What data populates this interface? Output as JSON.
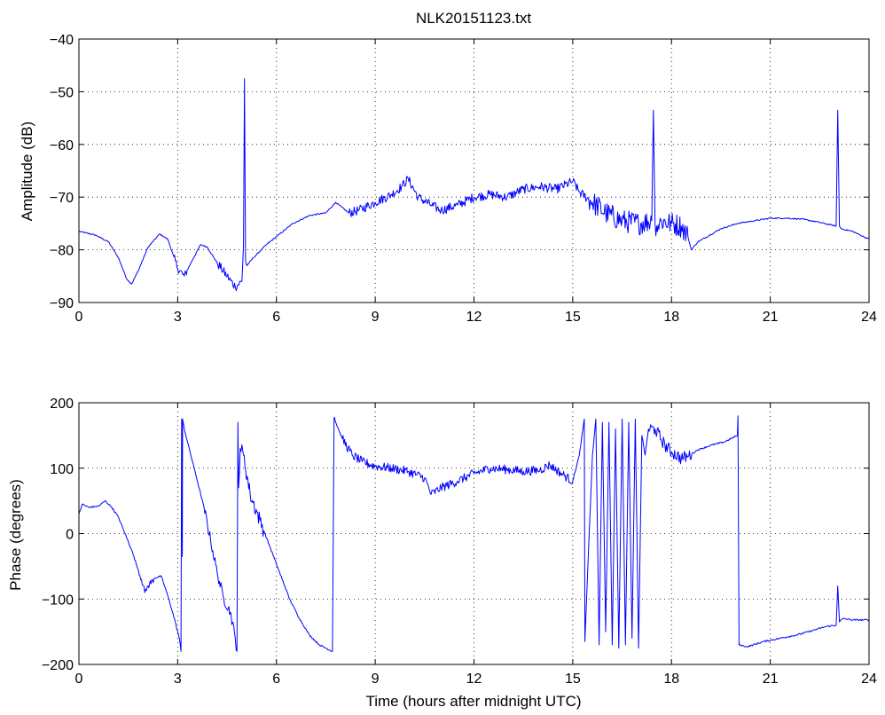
{
  "chart_data": [
    {
      "type": "line",
      "title": "NLK20151123.txt",
      "xlabel": "",
      "ylabel": "Amplitude (dB)",
      "xlim": [
        0,
        24
      ],
      "ylim": [
        -90,
        -40
      ],
      "xticks": [
        0,
        3,
        6,
        9,
        12,
        15,
        18,
        21,
        24
      ],
      "yticks": [
        -90,
        -80,
        -70,
        -60,
        -50,
        -40
      ],
      "grid": true,
      "line_color": "#0000ff",
      "series": [
        {
          "x": [
            0,
            0.5,
            0.9,
            1.2,
            1.45,
            1.6,
            1.8,
            2.1,
            2.45,
            2.7,
            3.0,
            3.2,
            3.4,
            3.7,
            3.9,
            4.2,
            4.5,
            4.75,
            4.95,
            5.0,
            5.03,
            5.06,
            5.1,
            5.3,
            5.7,
            6.0,
            6.5,
            7.0,
            7.5,
            7.8,
            8.2,
            8.5,
            9.0,
            9.5,
            9.8,
            10.0,
            10.3,
            10.7,
            11.0,
            11.5,
            12.0,
            12.5,
            13.0,
            13.5,
            14.0,
            14.5,
            15.0,
            15.2,
            15.6,
            16.0,
            16.5,
            17.0,
            17.4,
            17.45,
            17.5,
            17.55,
            17.7,
            18.0,
            18.3,
            18.5,
            18.6,
            18.8,
            19.5,
            20.0,
            20.5,
            21.0,
            21.5,
            22.0,
            22.5,
            23.0,
            23.05,
            23.1,
            23.15,
            23.5,
            24.0
          ],
          "y": [
            -76.5,
            -77.2,
            -78.5,
            -81.5,
            -85.5,
            -86.5,
            -84,
            -79.5,
            -77,
            -78,
            -83.5,
            -85,
            -82.5,
            -79,
            -79.5,
            -82.5,
            -85,
            -87,
            -86,
            -79,
            -47.5,
            -82,
            -83,
            -81.5,
            -79,
            -77.5,
            -75,
            -73.5,
            -73,
            -71,
            -73,
            -72.5,
            -71,
            -69.5,
            -68,
            -66.5,
            -70,
            -71.5,
            -72.5,
            -71.5,
            -70,
            -69.5,
            -70,
            -68.5,
            -68,
            -68.5,
            -67,
            -69,
            -71,
            -73,
            -74.5,
            -75,
            -74.5,
            -53.5,
            -75,
            -75.5,
            -74.5,
            -75,
            -75.5,
            -77.5,
            -80,
            -78.5,
            -76,
            -75,
            -74.5,
            -74,
            -74,
            -74.2,
            -74.8,
            -75.5,
            -53.5,
            -75.5,
            -76,
            -76.5,
            -78
          ]
        }
      ]
    },
    {
      "type": "line",
      "title": "",
      "xlabel": "Time (hours after midnight UTC)",
      "ylabel": "Phase (degrees)",
      "xlim": [
        0,
        24
      ],
      "ylim": [
        -200,
        200
      ],
      "xticks": [
        0,
        3,
        6,
        9,
        12,
        15,
        18,
        21,
        24
      ],
      "yticks": [
        -200,
        -100,
        0,
        100,
        200
      ],
      "grid": true,
      "line_color": "#0000ff",
      "series": [
        {
          "x": [
            0,
            0.1,
            0.3,
            0.6,
            0.8,
            1.0,
            1.2,
            1.4,
            1.6,
            1.9,
            2.0,
            2.1,
            2.3,
            2.5,
            2.7,
            2.9,
            3.05,
            3.1,
            3.12,
            3.13,
            3.14,
            3.15,
            3.2,
            3.5,
            3.8,
            4.0,
            4.2,
            4.4,
            4.6,
            4.75,
            4.8,
            4.83,
            4.85,
            4.9,
            5.0,
            5.2,
            5.5,
            5.8,
            6.1,
            6.4,
            6.7,
            7.0,
            7.3,
            7.5,
            7.7,
            7.75,
            7.76,
            7.8,
            8.0,
            8.3,
            8.6,
            9.0,
            9.5,
            10.0,
            10.5,
            10.7,
            11.0,
            11.5,
            12.0,
            12.5,
            13.0,
            13.5,
            14.0,
            14.3,
            14.7,
            15.0,
            15.2,
            15.35,
            15.37,
            15.5,
            15.6,
            15.7,
            15.8,
            15.9,
            16.0,
            16.1,
            16.2,
            16.3,
            16.4,
            16.5,
            16.6,
            16.7,
            16.8,
            16.9,
            17.0,
            17.1,
            17.2,
            17.3,
            17.5,
            17.8,
            18.0,
            18.3,
            18.5,
            18.8,
            19.2,
            19.6,
            20.0,
            20.02,
            20.05,
            20.3,
            20.8,
            21.3,
            21.8,
            22.3,
            22.7,
            23.0,
            23.05,
            23.1,
            23.2,
            23.5,
            24.0
          ],
          "y": [
            30,
            45,
            40,
            42,
            50,
            40,
            25,
            0,
            -25,
            -70,
            -90,
            -80,
            -68,
            -65,
            -95,
            -130,
            -160,
            -180,
            175,
            40,
            -35,
            175,
            160,
            100,
            40,
            -10,
            -60,
            -100,
            -120,
            -160,
            -180,
            170,
            70,
            130,
            120,
            60,
            20,
            -20,
            -60,
            -100,
            -130,
            -155,
            -170,
            -175,
            -180,
            175,
            178,
            170,
            145,
            120,
            110,
            103,
            100,
            95,
            85,
            60,
            70,
            80,
            92,
            100,
            98,
            95,
            97,
            105,
            90,
            80,
            120,
            175,
            -165,
            0,
            120,
            175,
            -170,
            170,
            -150,
            170,
            -170,
            160,
            -175,
            175,
            -170,
            170,
            -160,
            175,
            -175,
            150,
            120,
            160,
            160,
            135,
            125,
            115,
            118,
            128,
            135,
            140,
            150,
            180,
            -170,
            -173,
            -165,
            -160,
            -155,
            -148,
            -142,
            -140,
            -80,
            -135,
            -130,
            -132,
            -132
          ]
        }
      ]
    }
  ]
}
